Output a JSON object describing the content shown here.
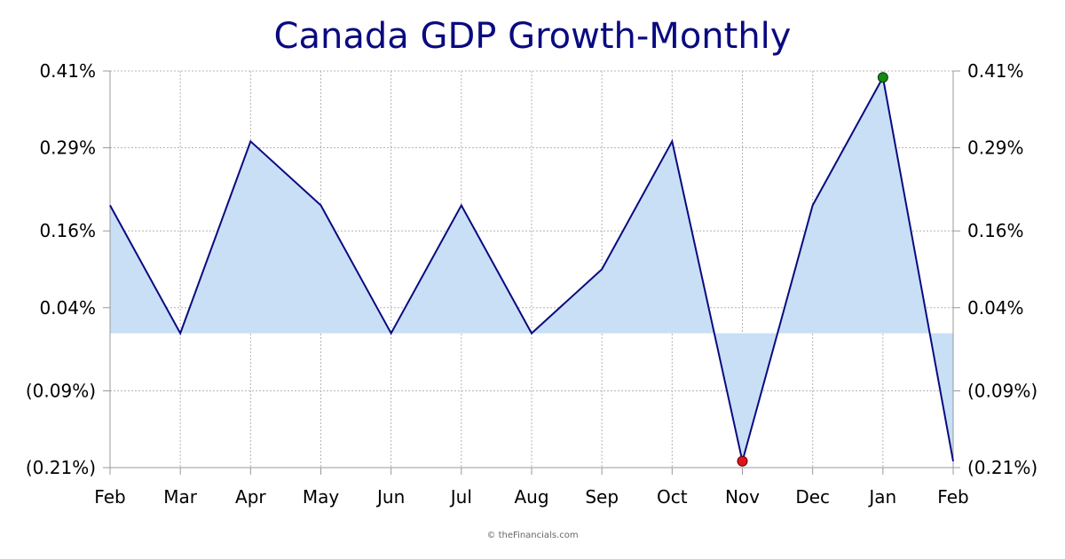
{
  "chart_data": {
    "type": "area",
    "title": "Canada GDP Growth-Monthly",
    "xlabel": "",
    "ylabel": "",
    "categories": [
      "Feb",
      "Mar",
      "Apr",
      "May",
      "Jun",
      "Jul",
      "Aug",
      "Sep",
      "Oct",
      "Nov",
      "Dec",
      "Jan",
      "Feb"
    ],
    "values": [
      0.2,
      0.0,
      0.3,
      0.2,
      0.0,
      0.2,
      0.0,
      0.1,
      0.3,
      -0.2,
      0.2,
      0.4,
      -0.2
    ],
    "y_ticks": [
      "0.41%",
      "0.29%",
      "0.16%",
      "0.04%",
      "(0.09%)",
      "(0.21%)"
    ],
    "y_tick_values": [
      0.41,
      0.29,
      0.16,
      0.04,
      -0.09,
      -0.21
    ],
    "ylim": [
      -0.21,
      0.41
    ],
    "grid": true,
    "dual_y_axis": true,
    "highlight_max_index": 11,
    "highlight_min_index": 9,
    "colors": {
      "line": "#0a0a80",
      "fill": "#c8dff5",
      "grid": "#b4b4b4",
      "max_marker": "#138a13",
      "min_marker": "#e0141e",
      "title": "#0a0a80"
    }
  },
  "credit": "© theFinancials.com"
}
